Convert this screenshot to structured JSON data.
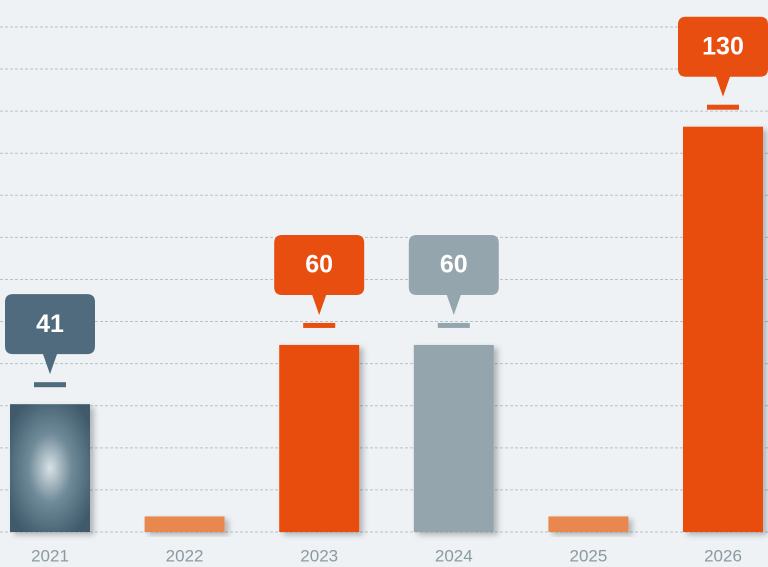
{
  "chart_data": {
    "type": "bar",
    "categories": [
      "2021",
      "2022",
      "2023",
      "2024",
      "2025",
      "2026"
    ],
    "values": [
      41,
      5,
      60,
      60,
      5,
      130
    ],
    "value_labels": [
      "41",
      null,
      "60",
      "60",
      null,
      "130"
    ],
    "colors": [
      "#4f6b7d",
      "#e8884f",
      "#e84e10",
      "#94a5ad",
      "#e8884f",
      "#e84e10"
    ],
    "ylim": [
      0,
      170
    ],
    "yticks": [
      13.5,
      27,
      40.5,
      54,
      67.5,
      81,
      94.5,
      108,
      121.5,
      135,
      148.5,
      162
    ],
    "grid": true
  }
}
